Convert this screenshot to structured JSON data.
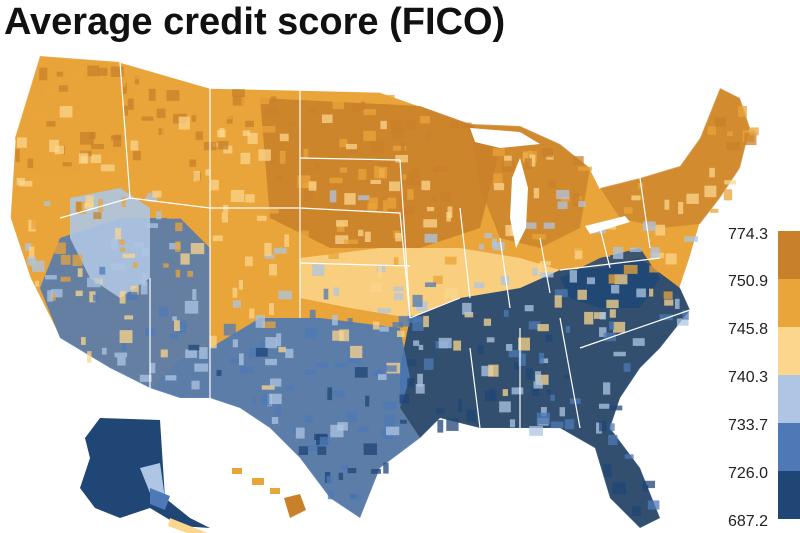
{
  "title": "Average credit score (FICO)",
  "legend": {
    "ticks": [
      "774.3",
      "750.9",
      "745.8",
      "740.3",
      "733.7",
      "726.0",
      "687.2"
    ],
    "colors": [
      "#c8802a",
      "#e9a43a",
      "#fbd68c",
      "#aec6e3",
      "#4e79b6",
      "#1f4675"
    ]
  },
  "chart_data": {
    "type": "choropleth",
    "title": "Average credit score (FICO)",
    "bins": [
      {
        "min": 750.9,
        "max": 774.3,
        "color": "#c8802a"
      },
      {
        "min": 745.8,
        "max": 750.9,
        "color": "#e9a43a"
      },
      {
        "min": 740.3,
        "max": 745.8,
        "color": "#fbd68c"
      },
      {
        "min": 733.7,
        "max": 740.3,
        "color": "#aec6e3"
      },
      {
        "min": 726.0,
        "max": 733.7,
        "color": "#4e79b6"
      },
      {
        "min": 687.2,
        "max": 726.0,
        "color": "#1f4675"
      }
    ]
  }
}
